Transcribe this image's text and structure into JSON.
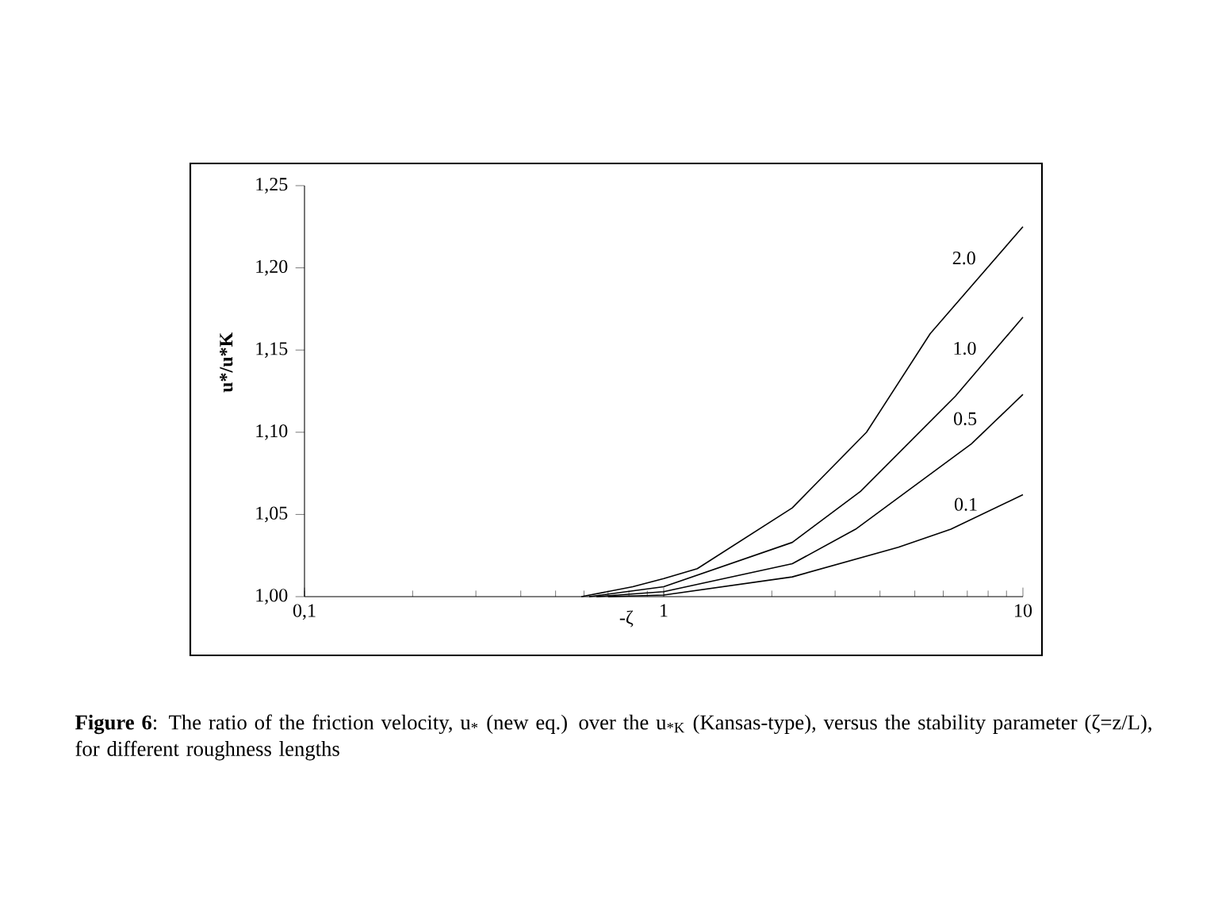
{
  "chart_data": {
    "type": "line",
    "xlabel": "-ζ",
    "ylabel": "u*/u*K",
    "log": "x",
    "xlim": [
      0.1,
      10
    ],
    "xticks": [
      {
        "value": 0.1,
        "label": "0,1"
      },
      1,
      10
    ],
    "ylim": [
      1.0,
      1.25
    ],
    "yticks": [
      {
        "value": 1.0,
        "label": "1,00"
      },
      {
        "value": 1.05,
        "label": "1,05"
      },
      {
        "value": 1.1,
        "label": "1,10"
      },
      {
        "value": 1.15,
        "label": "1,15"
      },
      {
        "value": 1.2,
        "label": "1,20"
      },
      {
        "value": 1.25,
        "label": "1,25"
      }
    ],
    "grid": false,
    "legend": false,
    "marker": "none",
    "line_style": "solid",
    "series": [
      {
        "name": "2.0",
        "color": "#000000",
        "x": [
          0.59,
          0.82,
          1.0,
          1.24,
          2.28,
          3.67,
          5.52,
          10
        ],
        "values": [
          1.0,
          1.006,
          1.011,
          1.017,
          1.054,
          1.1,
          1.16,
          1.225
        ]
      },
      {
        "name": "1.0",
        "color": "#000000",
        "x": [
          0.62,
          1.0,
          2.28,
          3.53,
          6.49,
          10
        ],
        "values": [
          1.0,
          1.006,
          1.033,
          1.064,
          1.122,
          1.17
        ]
      },
      {
        "name": "0.5",
        "color": "#000000",
        "x": [
          0.65,
          1.0,
          2.28,
          3.42,
          7.19,
          10
        ],
        "values": [
          1.0,
          1.003,
          1.02,
          1.041,
          1.093,
          1.123
        ]
      },
      {
        "name": "0.1",
        "color": "#000000",
        "x": [
          0.7,
          1.0,
          2.28,
          4.5,
          6.3,
          10
        ],
        "values": [
          1.0,
          1.001,
          1.012,
          1.03,
          1.041,
          1.062
        ]
      }
    ],
    "annotations": [
      "**Figure 6**: The ratio of the friction velocity, u$_{*}$ (new eq.) over the u$_{*K}$ (Kansas-type), versus the stability parameter (ζ=z/L), for different roughness lengths"
    ]
  }
}
